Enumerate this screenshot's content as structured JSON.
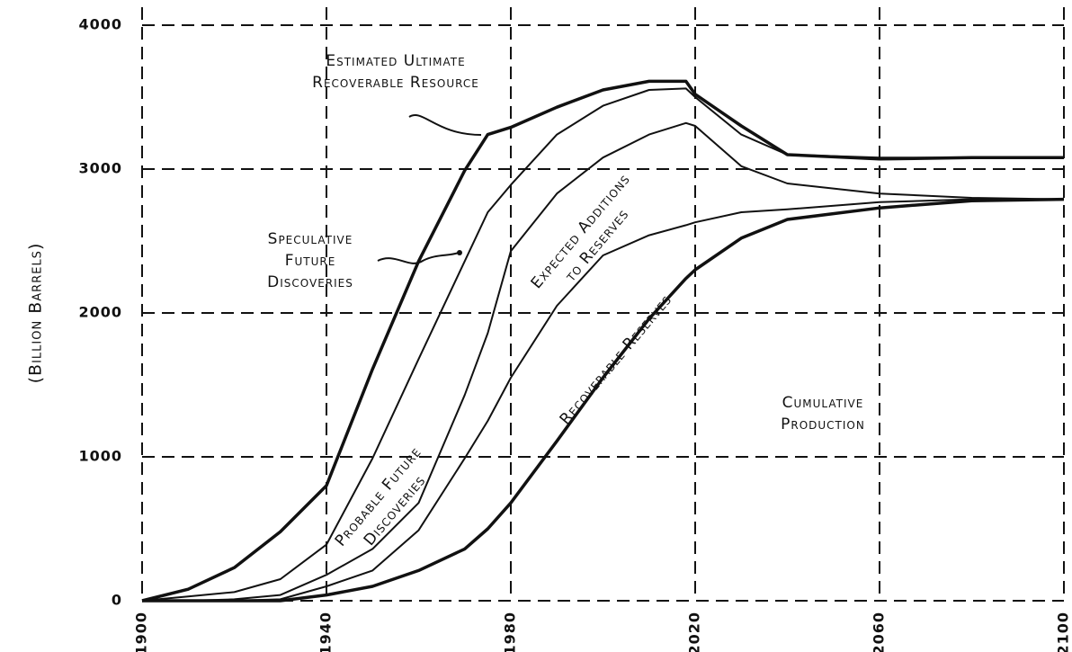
{
  "chart_data": {
    "type": "line",
    "y_label": "(Billion Barrels)",
    "x": [
      1900,
      1910,
      1920,
      1930,
      1940,
      1950,
      1960,
      1970,
      1975,
      1980,
      1990,
      2000,
      2010,
      2018,
      2020,
      2030,
      2040,
      2060,
      2080,
      2100
    ],
    "series": [
      {
        "color": "#111111",
        "values": [
          0,
          80,
          230,
          480,
          800,
          1610,
          2360,
          2990,
          3240,
          3290,
          3430,
          3550,
          3610,
          3610,
          3520,
          3300,
          3100,
          3070,
          3080,
          3080
        ]
      },
      {
        "color": "#111111",
        "values": [
          0,
          30,
          60,
          150,
          390,
          990,
          1680,
          2360,
          2700,
          2890,
          3240,
          3440,
          3550,
          3560,
          3500,
          3240,
          3100,
          3080,
          3080,
          3080
        ]
      },
      {
        "color": "#111111",
        "values": [
          0,
          0,
          10,
          40,
          180,
          360,
          680,
          1430,
          1860,
          2430,
          2830,
          3080,
          3240,
          3320,
          3300,
          3020,
          2900,
          2830,
          2800,
          2790
        ]
      },
      {
        "color": "#111111",
        "values": [
          0,
          0,
          0,
          10,
          100,
          210,
          490,
          990,
          1250,
          1550,
          2050,
          2400,
          2540,
          2610,
          2630,
          2700,
          2720,
          2770,
          2790,
          2790
        ]
      },
      {
        "color": "#111111",
        "values": [
          0,
          0,
          0,
          0,
          40,
          100,
          210,
          360,
          500,
          680,
          1110,
          1550,
          1960,
          2240,
          2300,
          2520,
          2650,
          2730,
          2780,
          2790
        ]
      }
    ],
    "xlim": [
      1900,
      2100
    ],
    "xticks": [
      1900,
      1940,
      1980,
      2020,
      2060,
      2100
    ],
    "ylim": [
      0,
      4000
    ],
    "yticks": [
      0,
      1000,
      2000,
      3000,
      4000
    ],
    "grid": true,
    "annotations": [
      {
        "lines": [
          "Estimated Ultimate",
          "Recoverable Resource"
        ]
      },
      {
        "lines": [
          "Speculative",
          "Future",
          "Discoveries"
        ]
      },
      {
        "lines": [
          "Probable Future",
          "Discoveries"
        ]
      },
      {
        "lines": [
          "Expected Additions",
          "to Reserves"
        ]
      },
      {
        "lines": [
          "Recoverable Reserves"
        ]
      },
      {
        "lines": [
          "Cumulative",
          "Production"
        ]
      }
    ]
  }
}
